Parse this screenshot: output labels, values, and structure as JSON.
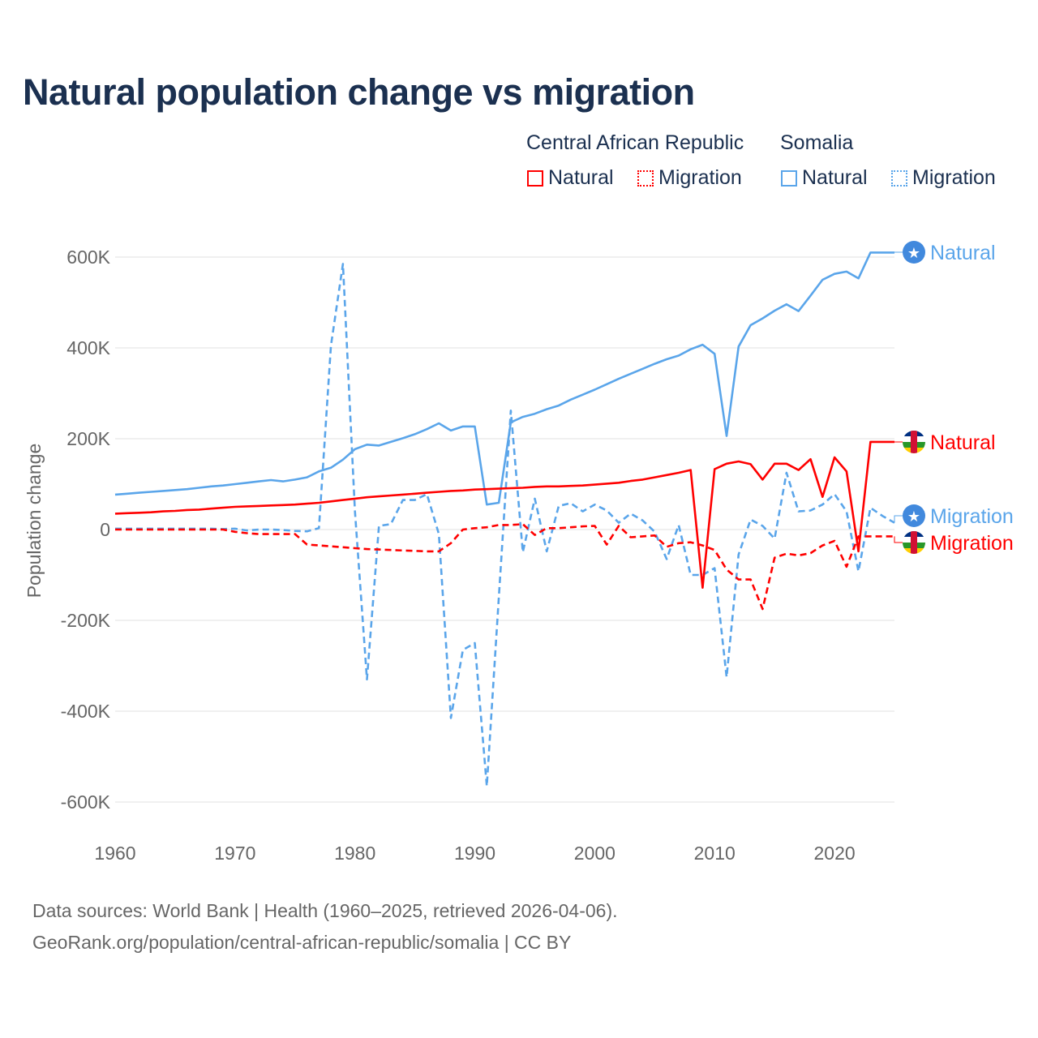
{
  "chart_data": {
    "type": "line",
    "title": "Natural population change vs migration",
    "xlabel": "",
    "ylabel": "Population change",
    "xlim": [
      1960,
      2025
    ],
    "ylim": [
      -600000,
      600000
    ],
    "x_ticks": [
      "1960",
      "1970",
      "1980",
      "1990",
      "2000",
      "2010",
      "2020"
    ],
    "y_ticks": [
      {
        "v": 600,
        "label": "600K"
      },
      {
        "v": 400,
        "label": "400K"
      },
      {
        "v": 200,
        "label": "200K"
      },
      {
        "v": 0,
        "label": "0"
      },
      {
        "v": -200,
        "label": "-200K"
      },
      {
        "v": -400,
        "label": "-400K"
      },
      {
        "v": -600,
        "label": "-600K"
      }
    ],
    "grid": true,
    "legend_position": "top-right",
    "legend_groups": [
      "Central African Republic",
      "Somalia"
    ],
    "x": [
      1960,
      1961,
      1962,
      1963,
      1964,
      1965,
      1966,
      1967,
      1968,
      1969,
      1970,
      1971,
      1972,
      1973,
      1974,
      1975,
      1976,
      1977,
      1978,
      1979,
      1980,
      1981,
      1982,
      1983,
      1984,
      1985,
      1986,
      1987,
      1988,
      1989,
      1990,
      1991,
      1992,
      1993,
      1994,
      1995,
      1996,
      1997,
      1998,
      1999,
      2000,
      2001,
      2002,
      2003,
      2004,
      2005,
      2006,
      2007,
      2008,
      2009,
      2010,
      2011,
      2012,
      2013,
      2014,
      2015,
      2016,
      2017,
      2018,
      2019,
      2020,
      2021,
      2022,
      2023,
      2024,
      2025
    ],
    "units": "thousands",
    "series": [
      {
        "name": "Natural",
        "country": "Central African Republic",
        "color": "#ff0000",
        "dash": false,
        "end_label": "Natural",
        "values": [
          35,
          36,
          37,
          38,
          40,
          41,
          43,
          44,
          46,
          48,
          50,
          51,
          52,
          53,
          54,
          55,
          57,
          59,
          62,
          65,
          68,
          71,
          73,
          75,
          77,
          79,
          81,
          83,
          85,
          86,
          88,
          89,
          90,
          91,
          92,
          94,
          95,
          95,
          96,
          97,
          99,
          101,
          103,
          107,
          110,
          115,
          120,
          125,
          131,
          -128,
          133,
          145,
          150,
          144,
          110,
          145,
          145,
          131,
          155,
          72,
          159,
          128,
          -48,
          193,
          193,
          193
        ]
      },
      {
        "name": "Migration",
        "country": "Central African Republic",
        "color": "#ff0000",
        "dash": true,
        "end_label": "Migration",
        "values": [
          0,
          0,
          0,
          0,
          0,
          0,
          0,
          0,
          0,
          0,
          -5,
          -8,
          -10,
          -10,
          -10,
          -10,
          -33,
          -35,
          -37,
          -39,
          -41,
          -43,
          -44,
          -45,
          -46,
          -47,
          -48,
          -48,
          -30,
          0,
          3,
          5,
          10,
          10,
          12,
          -12,
          3,
          3,
          5,
          7,
          8,
          -33,
          8,
          -17,
          -15,
          -13,
          -38,
          -30,
          -28,
          -35,
          -45,
          -88,
          -110,
          -110,
          -175,
          -62,
          -53,
          -57,
          -52,
          -35,
          -25,
          -82,
          -15,
          -15,
          -15,
          -15
        ]
      },
      {
        "name": "Natural",
        "country": "Somalia",
        "color": "#5aa5ea",
        "dash": false,
        "end_label": "Natural",
        "values": [
          77,
          79,
          81,
          83,
          85,
          87,
          89,
          92,
          95,
          97,
          100,
          103,
          106,
          109,
          106,
          110,
          115,
          128,
          136,
          154,
          177,
          187,
          185,
          193,
          201,
          210,
          221,
          234,
          218,
          227,
          227,
          55,
          59,
          236,
          248,
          255,
          265,
          273,
          286,
          297,
          308,
          320,
          332,
          343,
          354,
          365,
          375,
          383,
          397,
          407,
          387,
          206,
          403,
          450,
          465,
          482,
          496,
          481,
          515,
          550,
          563,
          568,
          553,
          610,
          610,
          610
        ]
      },
      {
        "name": "Migration",
        "country": "Somalia",
        "color": "#5aa5ea",
        "dash": true,
        "end_label": "Migration",
        "values": [
          2,
          2,
          2,
          2,
          2,
          2,
          2,
          2,
          2,
          1,
          2,
          -2,
          0,
          0,
          -1,
          -3,
          -4,
          3,
          405,
          585,
          40,
          -330,
          8,
          12,
          65,
          65,
          78,
          -10,
          -415,
          -265,
          -250,
          -565,
          -150,
          262,
          -50,
          68,
          -48,
          52,
          58,
          40,
          55,
          42,
          15,
          35,
          20,
          -5,
          -65,
          10,
          -100,
          -100,
          -85,
          -325,
          -55,
          22,
          8,
          -20,
          125,
          40,
          42,
          55,
          78,
          40,
          -92,
          48,
          30,
          15
        ]
      }
    ]
  },
  "sources": {
    "line1": "Data sources: World Bank | Health (1960–2025, retrieved 2026-04-06).",
    "line2": "GeoRank.org/population/central-african-republic/somalia | CC BY"
  }
}
